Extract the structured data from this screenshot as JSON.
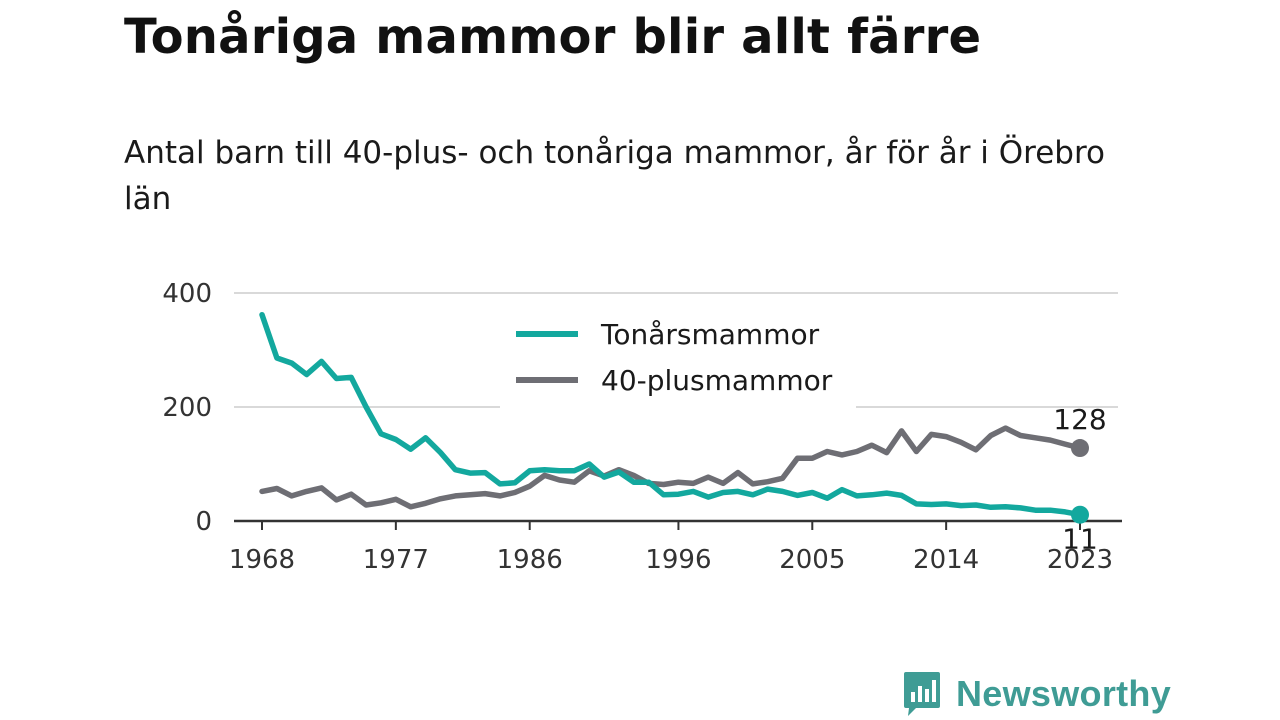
{
  "title": "Tonåriga mammor blir allt färre",
  "subtitle": "Antal barn till 40-plus- och tonåriga mammor, år för år i Örebro län",
  "brand": {
    "name": "Newsworthy",
    "icon": "bar-chart-speech-bubble-icon",
    "color": "#3f9c95"
  },
  "chart_data": {
    "type": "line",
    "title": "Tonåriga mammor blir allt färre",
    "subtitle": "Antal barn till 40-plus- och tonåriga mammor, år för år i Örebro län",
    "xlabel": "",
    "ylabel": "",
    "xlim": [
      1968,
      2023
    ],
    "ylim": [
      0,
      400
    ],
    "x_ticks": [
      1968,
      1977,
      1986,
      1996,
      2005,
      2014,
      2023
    ],
    "y_ticks": [
      0,
      200,
      400
    ],
    "grid": "horizontal",
    "legend_position": "top-center",
    "x": [
      1968,
      1969,
      1970,
      1971,
      1972,
      1973,
      1974,
      1975,
      1976,
      1977,
      1978,
      1979,
      1980,
      1981,
      1982,
      1983,
      1984,
      1985,
      1986,
      1987,
      1988,
      1989,
      1990,
      1991,
      1992,
      1993,
      1994,
      1995,
      1996,
      1997,
      1998,
      1999,
      2000,
      2001,
      2002,
      2003,
      2004,
      2005,
      2006,
      2007,
      2008,
      2009,
      2010,
      2011,
      2012,
      2013,
      2014,
      2015,
      2016,
      2017,
      2018,
      2019,
      2020,
      2021,
      2022,
      2023
    ],
    "series": [
      {
        "name": "Tonårsmammor",
        "color": "#13a89e",
        "end_label": "11",
        "values": [
          362,
          286,
          277,
          257,
          280,
          250,
          252,
          200,
          153,
          143,
          126,
          146,
          120,
          90,
          84,
          85,
          65,
          67,
          88,
          90,
          88,
          88,
          100,
          77,
          86,
          68,
          68,
          46,
          47,
          52,
          42,
          50,
          52,
          46,
          56,
          52,
          45,
          50,
          40,
          55,
          44,
          46,
          49,
          45,
          30,
          29,
          30,
          27,
          28,
          24,
          25,
          23,
          19,
          19,
          16,
          11
        ]
      },
      {
        "name": "40-plusmammor",
        "color": "#6e6e74",
        "end_label": "128",
        "values": [
          52,
          57,
          44,
          52,
          58,
          37,
          47,
          28,
          32,
          38,
          25,
          31,
          39,
          44,
          46,
          48,
          44,
          50,
          61,
          80,
          72,
          68,
          88,
          79,
          90,
          80,
          66,
          64,
          68,
          66,
          77,
          66,
          85,
          65,
          69,
          75,
          110,
          110,
          122,
          116,
          122,
          133,
          120,
          158,
          122,
          152,
          148,
          138,
          125,
          150,
          163,
          150,
          146,
          142,
          135,
          128
        ]
      }
    ]
  }
}
